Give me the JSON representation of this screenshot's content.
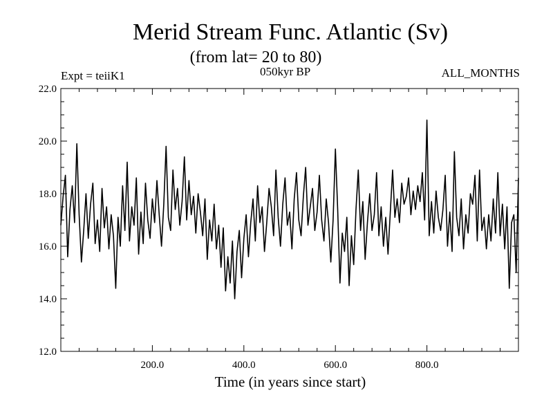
{
  "header": {
    "title": "Merid Stream Func. Atlantic (Sv)",
    "subtitle": "(from lat= 20 to 80)",
    "expt_label": "Expt = teiiK1",
    "period_label": "050kyr BP",
    "months_label": "ALL_MONTHS"
  },
  "chart_data": {
    "type": "line",
    "title": "Merid Stream Func. Atlantic (Sv)",
    "subtitle": "(from lat= 20 to 80)",
    "xlabel": "Time (in years since start)",
    "ylabel": "",
    "xlim": [
      0,
      1000
    ],
    "ylim": [
      12.0,
      22.0
    ],
    "x_ticks": [
      200,
      400,
      600,
      800
    ],
    "x_tick_labels": [
      "200.0",
      "400.0",
      "600.0",
      "800.0"
    ],
    "y_ticks": [
      12,
      14,
      16,
      18,
      20,
      22
    ],
    "y_tick_labels": [
      "12.0",
      "14.0",
      "16.0",
      "18.0",
      "20.0",
      "22.0"
    ],
    "grid": false,
    "series": [
      {
        "x": [
          0,
          5,
          10,
          15,
          20,
          25,
          30,
          35,
          40,
          45,
          50,
          55,
          60,
          65,
          70,
          75,
          80,
          85,
          90,
          95,
          100,
          105,
          110,
          115,
          120,
          125,
          130,
          135,
          140,
          145,
          150,
          155,
          160,
          165,
          170,
          175,
          180,
          185,
          190,
          195,
          200,
          205,
          210,
          215,
          220,
          225,
          230,
          235,
          240,
          245,
          250,
          255,
          260,
          265,
          270,
          275,
          280,
          285,
          290,
          295,
          300,
          305,
          310,
          315,
          320,
          325,
          330,
          335,
          340,
          345,
          350,
          355,
          360,
          365,
          370,
          375,
          380,
          385,
          390,
          395,
          400,
          405,
          410,
          415,
          420,
          425,
          430,
          435,
          440,
          445,
          450,
          455,
          460,
          465,
          470,
          475,
          480,
          485,
          490,
          495,
          500,
          505,
          510,
          515,
          520,
          525,
          530,
          535,
          540,
          545,
          550,
          555,
          560,
          565,
          570,
          575,
          580,
          585,
          590,
          595,
          600,
          605,
          610,
          615,
          620,
          625,
          630,
          635,
          640,
          645,
          650,
          655,
          660,
          665,
          670,
          675,
          680,
          685,
          690,
          695,
          700,
          705,
          710,
          715,
          720,
          725,
          730,
          735,
          740,
          745,
          750,
          755,
          760,
          765,
          770,
          775,
          780,
          785,
          790,
          795,
          800,
          805,
          810,
          815,
          820,
          825,
          830,
          835,
          840,
          845,
          850,
          855,
          860,
          865,
          870,
          875,
          880,
          885,
          890,
          895,
          900,
          905,
          910,
          915,
          920,
          925,
          930,
          935,
          940,
          945,
          950,
          955,
          960,
          965,
          970,
          975,
          980,
          985,
          990,
          995,
          1000
        ],
        "y": [
          16.8,
          17.9,
          18.7,
          15.6,
          17.4,
          18.3,
          16.9,
          19.9,
          17.2,
          15.4,
          16.6,
          18.0,
          16.3,
          17.6,
          18.4,
          16.1,
          17.0,
          15.8,
          18.2,
          16.7,
          17.5,
          15.9,
          17.2,
          16.4,
          14.4,
          17.1,
          16.0,
          18.3,
          16.6,
          19.2,
          16.2,
          17.5,
          16.8,
          18.6,
          15.7,
          17.3,
          16.1,
          18.4,
          17.0,
          16.3,
          17.8,
          16.9,
          18.5,
          17.2,
          16.0,
          17.6,
          19.8,
          17.1,
          16.6,
          18.9,
          17.4,
          18.2,
          16.8,
          17.7,
          19.4,
          17.0,
          18.5,
          17.2,
          17.9,
          16.5,
          18.0,
          17.3,
          16.4,
          17.8,
          15.5,
          17.0,
          16.2,
          17.6,
          15.9,
          16.8,
          15.2,
          16.7,
          14.3,
          15.6,
          14.6,
          16.2,
          14.0,
          15.8,
          16.6,
          14.8,
          16.3,
          17.2,
          15.6,
          16.9,
          17.8,
          16.2,
          18.3,
          16.9,
          17.5,
          15.8,
          16.9,
          18.2,
          17.5,
          16.4,
          18.9,
          17.1,
          16.0,
          17.6,
          18.6,
          16.8,
          17.3,
          15.9,
          17.8,
          18.8,
          17.0,
          16.4,
          17.9,
          19.0,
          16.8,
          17.5,
          18.2,
          16.6,
          17.3,
          18.7,
          17.0,
          16.2,
          17.8,
          16.9,
          15.4,
          17.0,
          19.7,
          17.4,
          14.6,
          16.5,
          15.8,
          17.1,
          14.5,
          16.4,
          15.3,
          17.4,
          18.9,
          16.6,
          17.7,
          15.5,
          16.9,
          18.0,
          16.6,
          17.2,
          18.8,
          16.4,
          17.5,
          16.0,
          17.1,
          15.7,
          17.3,
          18.9,
          17.1,
          17.8,
          16.9,
          18.4,
          17.6,
          17.9,
          18.6,
          17.2,
          18.1,
          17.4,
          18.3,
          17.7,
          18.8,
          17.0,
          20.8,
          16.4,
          17.7,
          16.5,
          18.1,
          17.1,
          16.6,
          17.4,
          18.7,
          16.0,
          17.3,
          15.8,
          19.6,
          17.1,
          16.4,
          17.8,
          15.9,
          17.2,
          16.5,
          18.0,
          17.6,
          18.7,
          16.2,
          18.9,
          16.6,
          17.1,
          15.9,
          17.2,
          16.2,
          17.8,
          16.5,
          18.8,
          16.4,
          17.6,
          15.9,
          17.5,
          14.4,
          16.9,
          17.2,
          15.0,
          18.6
        ]
      }
    ]
  }
}
